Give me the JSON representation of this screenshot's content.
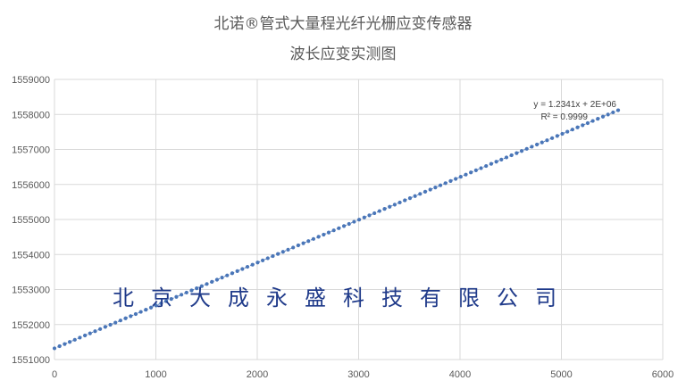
{
  "title_line1": "北诺®管式大量程光纤光栅应变传感器",
  "title_line2": "波长应变实测图",
  "watermark": "北京大成永盛科技有限公司",
  "equation": "y = 1.2341x + 2E+06",
  "r_squared": "R² = 0.9999",
  "chart_data": {
    "type": "scatter",
    "title": "北诺®管式大量程光纤光栅应变传感器 波长应变实测图",
    "xlabel": "",
    "ylabel": "",
    "xlim": [
      0,
      6000
    ],
    "ylim": [
      1551000,
      1559000
    ],
    "x_ticks": [
      "0",
      "1000",
      "2000",
      "3000",
      "4000",
      "5000",
      "6000"
    ],
    "y_ticks": [
      "1551000",
      "1552000",
      "1553000",
      "1554000",
      "1555000",
      "1556000",
      "1557000",
      "1558000",
      "1559000"
    ],
    "grid": true,
    "trendline": {
      "type": "linear",
      "equation": "y = 1.2341x + 2E+06",
      "r_squared": "R² = 0.9999"
    },
    "series": [
      {
        "color": "#4a76b8",
        "points_x_range": [
          0,
          5560
        ],
        "points_y_range": [
          1551320,
          1558120
        ],
        "point_count": 112
      }
    ]
  }
}
